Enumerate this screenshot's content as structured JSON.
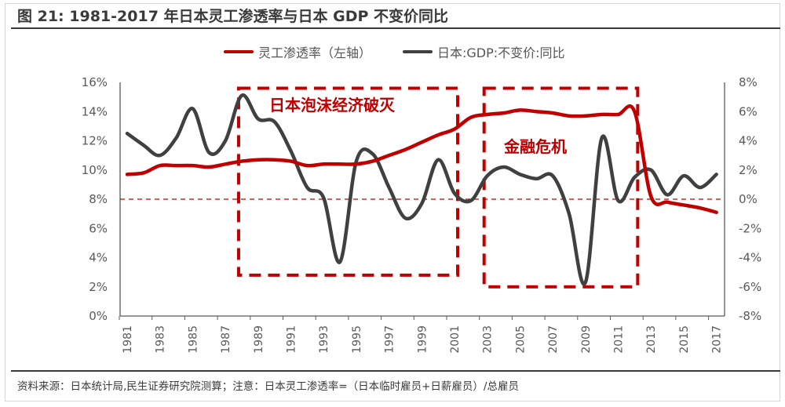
{
  "title": "图 21: 1981-2017 年日本灵工渗透率与日本 GDP 不变价同比",
  "source_note": "资料来源：日本统计局,民生证券研究院测算；注意：日本灵工渗透率=（日本临时雇员+日薪雇员）/总雇员",
  "colors": {
    "series_red": "#c00000",
    "series_gray": "#404040",
    "axis": "#595959",
    "box": "#c00000"
  },
  "chart_data": {
    "type": "line",
    "title": "图 21: 1981-2017 年日本灵工渗透率与日本 GDP 不变价同比",
    "xlabel": "",
    "x": [
      1981,
      1982,
      1983,
      1984,
      1985,
      1986,
      1987,
      1988,
      1989,
      1990,
      1991,
      1992,
      1993,
      1994,
      1995,
      1996,
      1997,
      1998,
      1999,
      2000,
      2001,
      2002,
      2003,
      2004,
      2005,
      2006,
      2007,
      2008,
      2009,
      2010,
      2011,
      2012,
      2013,
      2014,
      2015,
      2016,
      2017
    ],
    "x_tick_labels": [
      "1981",
      "1983",
      "1985",
      "1987",
      "1989",
      "1991",
      "1993",
      "1995",
      "1997",
      "1999",
      "2001",
      "2003",
      "2005",
      "2007",
      "2009",
      "2011",
      "2013",
      "2015",
      "2017"
    ],
    "y_left": {
      "label": "",
      "ylim": [
        0,
        16
      ],
      "tick_labels": [
        "0%",
        "2%",
        "4%",
        "6%",
        "8%",
        "10%",
        "12%",
        "14%",
        "16%"
      ]
    },
    "y_right": {
      "label": "",
      "ylim": [
        -8,
        8
      ],
      "tick_labels": [
        "-8%",
        "-6%",
        "-4%",
        "-2%",
        "0%",
        "2%",
        "4%",
        "6%",
        "8%"
      ]
    },
    "grid": false,
    "legend_position": "top-center",
    "series": [
      {
        "name": "灵工渗透率（左轴）",
        "axis": "left",
        "values": [
          9.7,
          9.8,
          10.3,
          10.3,
          10.3,
          10.2,
          10.4,
          10.6,
          10.7,
          10.7,
          10.6,
          10.3,
          10.4,
          10.4,
          10.4,
          10.6,
          11.0,
          11.4,
          11.9,
          12.4,
          12.8,
          13.6,
          13.8,
          13.9,
          14.1,
          14.0,
          13.9,
          13.7,
          13.7,
          13.8,
          13.8,
          14.0,
          8.2,
          7.8,
          7.6,
          7.4,
          7.1
        ]
      },
      {
        "name": "日本:GDP:不变价:同比",
        "axis": "right",
        "values": [
          4.5,
          3.7,
          3.0,
          4.2,
          6.2,
          3.2,
          4.0,
          7.1,
          5.5,
          5.3,
          3.3,
          0.8,
          0.1,
          -4.3,
          2.6,
          3.1,
          0.8,
          -1.3,
          -0.3,
          2.7,
          0.4,
          -0.1,
          1.6,
          2.2,
          1.7,
          1.4,
          1.6,
          -1.0,
          -5.7,
          4.2,
          -0.1,
          1.5,
          2.0,
          0.3,
          1.6,
          0.8,
          1.7
        ]
      }
    ],
    "reference_lines": [
      {
        "axis": "right",
        "value": 0,
        "style": "dashed"
      }
    ],
    "annotations": [
      {
        "text": "日本泡沫经济破灭",
        "x_range": [
          1988,
          2001
        ],
        "y_left_range": [
          2.8,
          15.6
        ]
      },
      {
        "text": "金融危机",
        "x_range": [
          2003,
          2012
        ],
        "y_left_range": [
          2.0,
          15.6
        ]
      }
    ]
  }
}
